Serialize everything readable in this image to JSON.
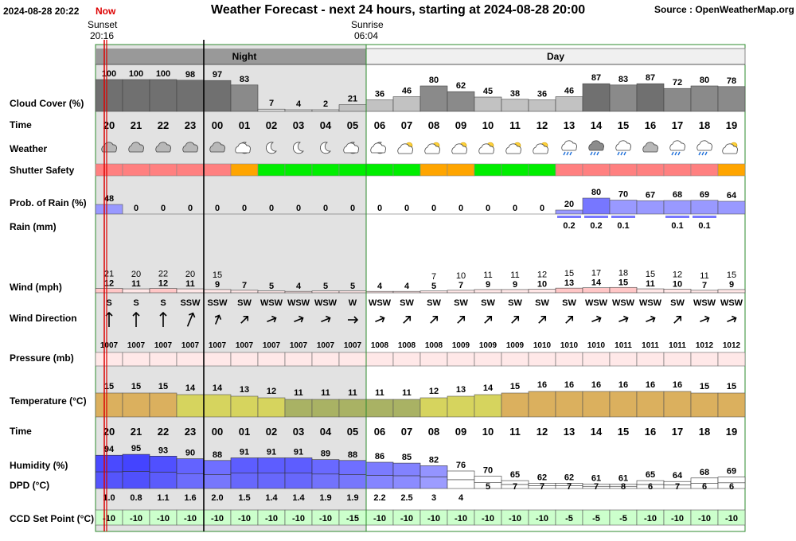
{
  "header": {
    "datetime": "2024-08-28 20:22",
    "now_label": "Now",
    "title": "Weather Forecast - next 24 hours, starting at 2024-08-28 20:00",
    "source": "Source : OpenWeatherMap.org",
    "sunset_label": "Sunset",
    "sunset_time": "20:16",
    "sunrise_label": "Sunrise",
    "sunrise_time": "06:04"
  },
  "colors": {
    "night_bg": "#e2e2e2",
    "now_line": "#dd0000",
    "band_header_night": "#999999",
    "band_header_day": "#f0f0f0",
    "cloud": [
      "#707070",
      "#8a8a8a",
      "#c2c2c2",
      "#e2e2e2"
    ],
    "safety": {
      "red": "#ff8080",
      "orange": "#ffa500",
      "green": "#00ee00"
    },
    "rain_prob": "#9999ff",
    "rain_prob_high": "#7777ff",
    "wind_high": "#ffc6c6",
    "wind_low": "#ffe6e6",
    "pressure": "#ffe8e8",
    "temp_cool": "#a9b264",
    "temp_mid": "#d6d45e",
    "temp_warm": "#dbb05e",
    "humidity_dark": "#4444ff",
    "humidity_light": "#bfbfff",
    "ccd_bg": "#ccffcc"
  },
  "chart_data": {
    "type": "table",
    "bands": [
      {
        "label": "Night",
        "from": 5,
        "to": 10
      },
      {
        "label": "Day",
        "from": 10,
        "to": 24
      }
    ],
    "rows": {
      "cloud_cover": "Cloud Cover (%)",
      "time": "Time",
      "weather": "Weather",
      "shutter_safety": "Shutter Safety",
      "rain_prob": "Prob. of Rain (%)",
      "rain": "Rain (mm)",
      "wind": "Wind (mph)",
      "wind_direction": "Wind Direction",
      "pressure": "Pressure (mb)",
      "temperature": "Temperature (°C)",
      "time2": "Time",
      "humidity": "Humidity (%)",
      "dpd": "DPD (°C)",
      "ccd": "CCD Set Point (°C)"
    },
    "hours": [
      "20",
      "21",
      "22",
      "23",
      "00",
      "01",
      "02",
      "03",
      "04",
      "05",
      "06",
      "07",
      "08",
      "09",
      "10",
      "11",
      "12",
      "13",
      "14",
      "15",
      "16",
      "17",
      "18",
      "19"
    ],
    "cloud_cover": [
      100,
      100,
      100,
      98,
      97,
      83,
      7,
      4,
      2,
      21,
      36,
      46,
      80,
      62,
      45,
      38,
      36,
      46,
      87,
      83,
      87,
      72,
      80,
      78
    ],
    "weather_icons": [
      "cloud",
      "cloud",
      "cloud",
      "cloud",
      "cloud",
      "moon-cloud",
      "moon",
      "moon",
      "moon",
      "moon-cloud",
      "moon-cloud",
      "sun-cloud",
      "sun-cloud",
      "sun-cloud",
      "sun-cloud",
      "sun-cloud",
      "sun-cloud",
      "rain",
      "rain-dark",
      "rain",
      "cloud",
      "rain",
      "rain",
      "sun-cloud"
    ],
    "shutter_safety": [
      "red",
      "red",
      "red",
      "red",
      "red",
      "orange",
      "green",
      "green",
      "green",
      "green",
      "green",
      "green",
      "orange",
      "orange",
      "green",
      "green",
      "green",
      "red",
      "red",
      "red",
      "red",
      "red",
      "red",
      "orange"
    ],
    "rain_prob": [
      48,
      0,
      0,
      0,
      0,
      0,
      0,
      0,
      0,
      0,
      0,
      0,
      0,
      0,
      0,
      0,
      0,
      20,
      80,
      70,
      67,
      68,
      69,
      64
    ],
    "rain_mm": [
      null,
      null,
      null,
      null,
      null,
      null,
      null,
      null,
      null,
      null,
      null,
      null,
      null,
      null,
      null,
      null,
      null,
      "0.2",
      "0.2",
      "0.1",
      null,
      "0.1",
      "0.1",
      null
    ],
    "wind_gust": [
      21,
      20,
      22,
      20,
      15,
      null,
      null,
      null,
      null,
      null,
      null,
      null,
      7,
      10,
      11,
      11,
      12,
      15,
      17,
      18,
      15,
      12,
      11,
      15
    ],
    "wind_speed": [
      12,
      11,
      12,
      11,
      9,
      7,
      5,
      4,
      5,
      5,
      4,
      4,
      5,
      7,
      9,
      9,
      10,
      13,
      14,
      15,
      11,
      10,
      7,
      9
    ],
    "wind_dir": [
      "S",
      "S",
      "S",
      "SSW",
      "SSW",
      "SW",
      "WSW",
      "WSW",
      "WSW",
      "W",
      "WSW",
      "SW",
      "SW",
      "SW",
      "SW",
      "SW",
      "SW",
      "SW",
      "WSW",
      "WSW",
      "WSW",
      "SW",
      "WSW",
      "WSW"
    ],
    "pressure": [
      1007,
      1007,
      1007,
      1007,
      1007,
      1007,
      1007,
      1007,
      1007,
      1007,
      1008,
      1008,
      1008,
      1009,
      1009,
      1009,
      1010,
      1010,
      1010,
      1011,
      1011,
      1011,
      1012,
      1012
    ],
    "temperature": [
      15,
      15,
      15,
      14,
      14,
      13,
      12,
      11,
      11,
      11,
      11,
      11,
      12,
      13,
      14,
      15,
      16,
      16,
      16,
      16,
      16,
      16,
      15,
      15
    ],
    "humidity": [
      94,
      95,
      93,
      90,
      88,
      91,
      91,
      91,
      89,
      88,
      86,
      85,
      82,
      76,
      70,
      65,
      62,
      62,
      61,
      61,
      65,
      64,
      68,
      69
    ],
    "dpd": [
      "1.0",
      "0.8",
      "1.1",
      "1.6",
      "2.0",
      "1.5",
      "1.4",
      "1.4",
      "1.9",
      "1.9",
      "2.2",
      "2.5",
      "3",
      "4",
      "5",
      "7",
      "7",
      "7",
      "7",
      "8",
      "6",
      "7",
      "6",
      "6"
    ],
    "ccd": [
      -10,
      -10,
      -10,
      -10,
      -10,
      -10,
      -10,
      -10,
      -10,
      -15,
      -10,
      -10,
      -10,
      -10,
      -10,
      -10,
      -10,
      -5,
      -5,
      -5,
      -10,
      -10,
      -10,
      -10
    ]
  }
}
